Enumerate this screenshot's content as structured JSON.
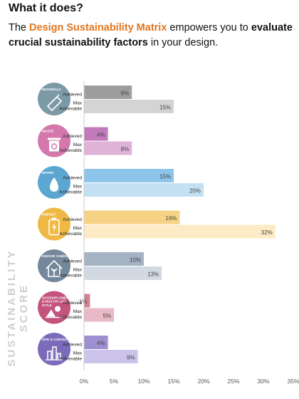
{
  "header": {
    "question": "What it does?",
    "intro_part1": "The ",
    "intro_highlight": "Design Sustainability Matrix",
    "intro_part2": " empowers you to ",
    "intro_bold": "evaluate crucial sustainability factors",
    "intro_part3": " in your design."
  },
  "chart_data": {
    "type": "bar",
    "orientation": "horizontal",
    "ylabel": "SUSTAINABILITY SCORE",
    "xlim": [
      0,
      35
    ],
    "x_ticks": [
      "0%",
      "5%",
      "10%",
      "15%",
      "20%",
      "25%",
      "30%",
      "35%"
    ],
    "bar_labels": [
      "Achieved",
      "Max Achievable"
    ],
    "grid": false,
    "categories": [
      {
        "name": "MATERIALS",
        "icon": "building-materials-icon",
        "color": "#7c9aa5",
        "achieved_color": "#9e9e9e",
        "max_color": "#d4d4d4",
        "achieved": 8,
        "max": 15
      },
      {
        "name": "WASTE",
        "icon": "recycle-bin-icon",
        "color": "#d477ad",
        "achieved_color": "#c27bb8",
        "max_color": "#dfb2d8",
        "achieved": 4,
        "max": 8
      },
      {
        "name": "WATER",
        "icon": "water-drop-icon",
        "color": "#5ca7d2",
        "achieved_color": "#8dc5ea",
        "max_color": "#c4e1f4",
        "achieved": 15,
        "max": 20
      },
      {
        "name": "ENERGY",
        "icon": "battery-bolt-icon",
        "color": "#efb946",
        "achieved_color": "#f6d284",
        "max_color": "#fcebc4",
        "achieved": 16,
        "max": 32
      },
      {
        "name": "INDOOR COMFORT",
        "icon": "house-icon",
        "color": "#75889b",
        "achieved_color": "#a4b2c4",
        "max_color": "#d2d9e3",
        "achieved": 10,
        "max": 13
      },
      {
        "name": "OUTDOOR COMFORT & HEALTHY LIFE STYLE",
        "icon": "outdoor-scene-icon",
        "color": "#c4547d",
        "achieved_color": "#d28293",
        "max_color": "#e8b9c6",
        "achieved": 1,
        "max": 5
      },
      {
        "name": "SITE & CONTEXT",
        "icon": "site-context-icon",
        "color": "#7c6bba",
        "achieved_color": "#9d8fd0",
        "max_color": "#cbc3e9",
        "achieved": 4,
        "max": 9
      }
    ]
  }
}
